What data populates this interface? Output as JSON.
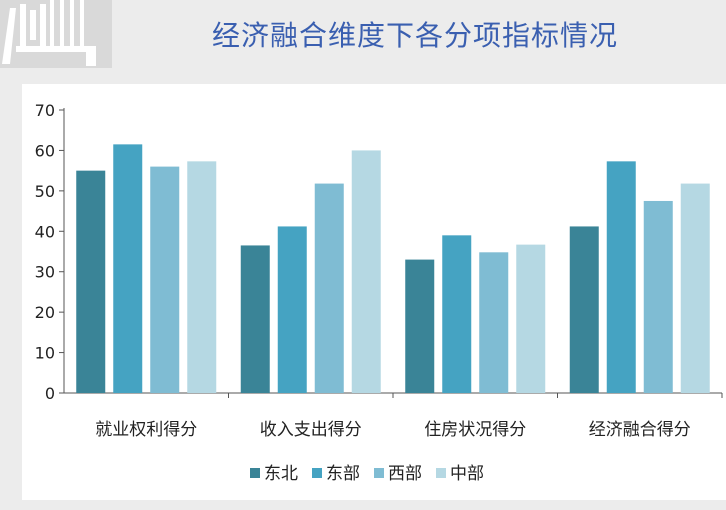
{
  "header": {
    "title": "经济融合维度下各分项指标情况"
  },
  "colors": {
    "title": "#3a5fb0",
    "series": [
      "#3a8497",
      "#45a3c2",
      "#7fbcd3",
      "#b5d8e3"
    ]
  },
  "chart_data": {
    "type": "bar",
    "title": "经济融合维度下各分项指标情况",
    "xlabel": "",
    "ylabel": "",
    "categories": [
      "就业权利得分",
      "收入支出得分",
      "住房状况得分",
      "经济融合得分"
    ],
    "series": [
      {
        "name": "东北",
        "values": [
          55,
          36.5,
          33,
          41.2
        ]
      },
      {
        "name": "东部",
        "values": [
          61.5,
          41.2,
          39,
          57.3
        ]
      },
      {
        "name": "西部",
        "values": [
          56,
          51.8,
          34.8,
          47.5
        ]
      },
      {
        "name": "中部",
        "values": [
          57.3,
          60,
          36.7,
          51.8
        ]
      }
    ],
    "ylim": [
      0,
      70
    ],
    "yticks": [
      0,
      10,
      20,
      30,
      40,
      50,
      60,
      70
    ],
    "grid": false,
    "legend_position": "bottom"
  }
}
